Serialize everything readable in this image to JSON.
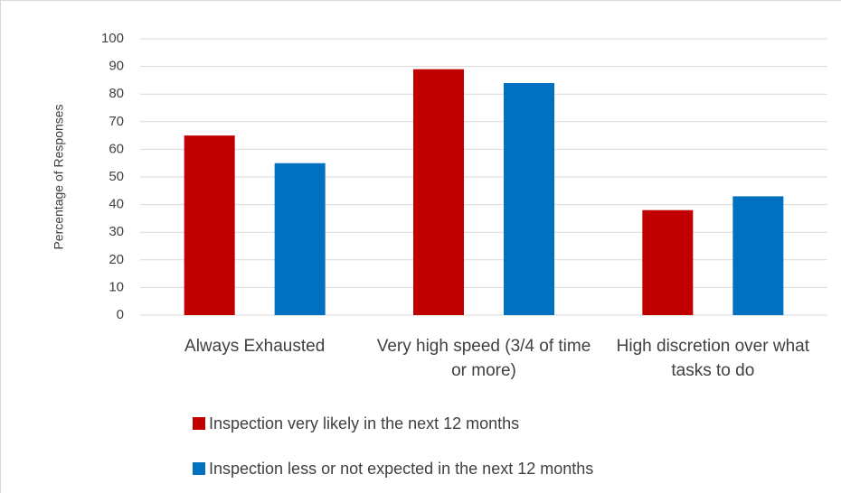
{
  "chart_data": {
    "type": "bar",
    "y_label": "Percentage of Responses",
    "categories": [
      "Always Exhausted",
      "Very high speed (3/4 of time or more)",
      "High discretion over what tasks to do"
    ],
    "series": [
      {
        "name": "Inspection very likely in the next 12 months",
        "color": "#c00000",
        "values": [
          65,
          89,
          38
        ]
      },
      {
        "name": "Inspection less or not expected in the next 12 months",
        "color": "#0070c0",
        "values": [
          55,
          84,
          43
        ]
      }
    ],
    "ylim": [
      0,
      100
    ],
    "yticks": [
      0,
      10,
      20,
      30,
      40,
      50,
      60,
      70,
      80,
      90,
      100
    ],
    "grid": true,
    "legend": "bottom"
  }
}
